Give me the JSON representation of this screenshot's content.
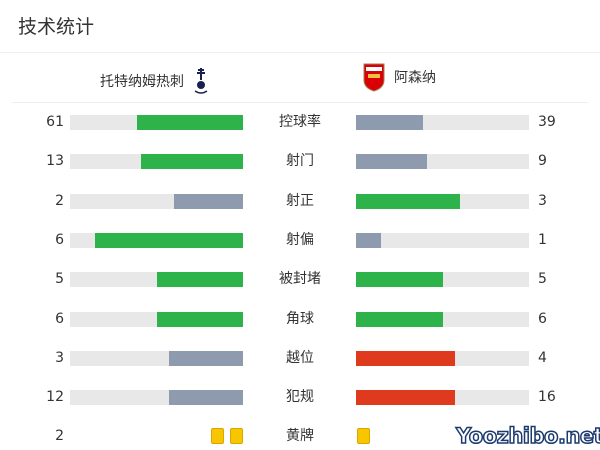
{
  "title": "技术统计",
  "home": {
    "name": "托特纳姆热刺",
    "logo": "tottenham-crest"
  },
  "away": {
    "name": "阿森纳",
    "logo": "arsenal-crest"
  },
  "colors": {
    "win": "#2db34a",
    "lose": "#8e9aad",
    "bad": "#e03a1e",
    "track": "#e8e8e8",
    "card": "#f7c600"
  },
  "stats": [
    {
      "label": "控球率",
      "home": 61,
      "away": 39,
      "home_color": "win",
      "away_color": "lose"
    },
    {
      "label": "射门",
      "home": 13,
      "away": 9,
      "home_color": "win",
      "away_color": "lose"
    },
    {
      "label": "射正",
      "home": 2,
      "away": 3,
      "home_color": "lose",
      "away_color": "win"
    },
    {
      "label": "射偏",
      "home": 6,
      "away": 1,
      "home_color": "win",
      "away_color": "lose"
    },
    {
      "label": "被封堵",
      "home": 5,
      "away": 5,
      "home_color": "win",
      "away_color": "win"
    },
    {
      "label": "角球",
      "home": 6,
      "away": 6,
      "home_color": "win",
      "away_color": "win"
    },
    {
      "label": "越位",
      "home": 3,
      "away": 4,
      "home_color": "lose",
      "away_color": "bad"
    },
    {
      "label": "犯规",
      "home": 12,
      "away": 16,
      "home_color": "lose",
      "away_color": "bad"
    }
  ],
  "yellow": {
    "label": "黄牌",
    "home": 2,
    "away": 1
  },
  "watermark": "Yoozhibo.net"
}
